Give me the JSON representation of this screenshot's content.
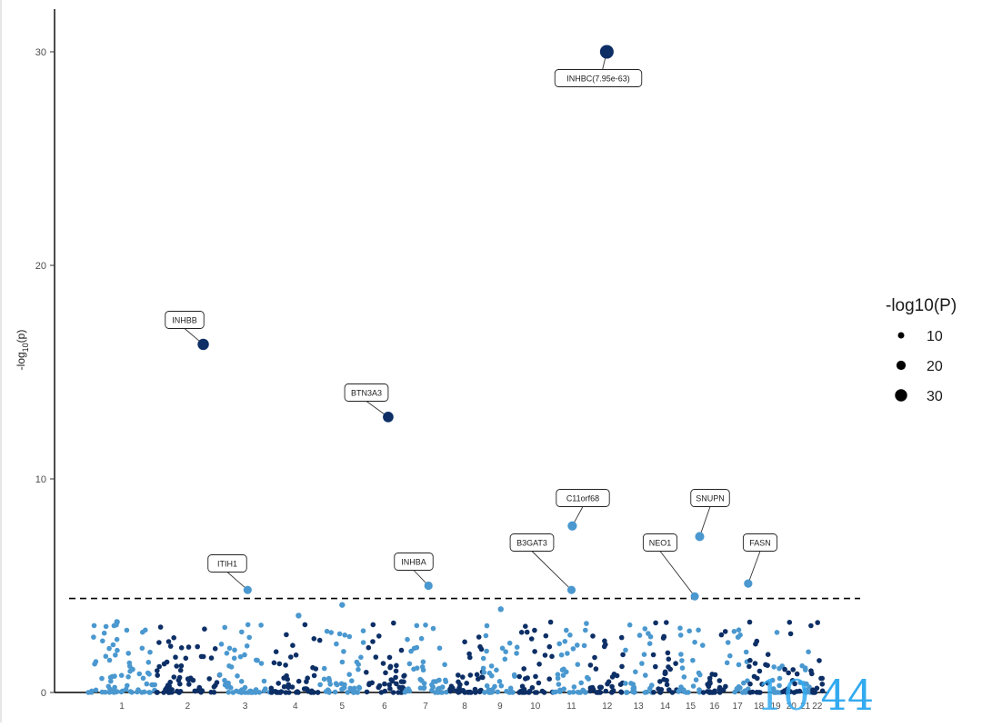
{
  "chart_data": {
    "type": "scatter",
    "subtype": "manhattan",
    "title": "",
    "xlabel": "",
    "ylabel": "-log10(p)",
    "ylim": [
      0,
      31.5
    ],
    "yticks": [
      0,
      10,
      20,
      30
    ],
    "grid": false,
    "legend": {
      "title": "-log10(P)",
      "placement": "right",
      "entries": [
        {
          "label": "10",
          "size_value": 10
        },
        {
          "label": "20",
          "size_value": 20
        },
        {
          "label": "30",
          "size_value": 30
        }
      ]
    },
    "threshold": {
      "y": 4.4,
      "style": "dashed"
    },
    "colors": {
      "light": "#4a98cf",
      "dark": "#0d2f66",
      "highlight": "#0d3a78"
    },
    "chromosomes": [
      {
        "label": "1",
        "start": 0,
        "end": 82
      },
      {
        "label": "2",
        "start": 82,
        "end": 160
      },
      {
        "label": "3",
        "start": 160,
        "end": 222
      },
      {
        "label": "4",
        "start": 222,
        "end": 282
      },
      {
        "label": "5",
        "start": 282,
        "end": 336
      },
      {
        "label": "6",
        "start": 336,
        "end": 385
      },
      {
        "label": "7",
        "start": 385,
        "end": 436
      },
      {
        "label": "8",
        "start": 436,
        "end": 480
      },
      {
        "label": "9",
        "start": 480,
        "end": 522
      },
      {
        "label": "10",
        "start": 522,
        "end": 566
      },
      {
        "label": "11",
        "start": 566,
        "end": 610
      },
      {
        "label": "12",
        "start": 610,
        "end": 653
      },
      {
        "label": "13",
        "start": 653,
        "end": 686
      },
      {
        "label": "14",
        "start": 686,
        "end": 718
      },
      {
        "label": "15",
        "start": 718,
        "end": 748
      },
      {
        "label": "16",
        "start": 748,
        "end": 776
      },
      {
        "label": "17",
        "start": 776,
        "end": 804
      },
      {
        "label": "18",
        "start": 804,
        "end": 828
      },
      {
        "label": "19",
        "start": 828,
        "end": 845
      },
      {
        "label": "20",
        "start": 845,
        "end": 866
      },
      {
        "label": "21",
        "start": 866,
        "end": 879
      },
      {
        "label": "22",
        "start": 879,
        "end": 895
      }
    ],
    "labeled_points": [
      {
        "gene": "INHBC(7.95e-63)",
        "chrom": "12",
        "x": 631,
        "y": 30.0,
        "size": 30,
        "color": "dark"
      },
      {
        "gene": "INHBB",
        "chrom": "2",
        "x": 140,
        "y": 16.3,
        "size": 16.3,
        "color": "dark"
      },
      {
        "gene": "BTN3A3",
        "chrom": "6",
        "x": 365,
        "y": 12.9,
        "size": 12.9,
        "color": "dark"
      },
      {
        "gene": "C11orf68",
        "chrom": "11",
        "x": 589,
        "y": 7.8,
        "size": 7.8,
        "color": "light"
      },
      {
        "gene": "SNUPN",
        "chrom": "15",
        "x": 744,
        "y": 7.3,
        "size": 7.3,
        "color": "light"
      },
      {
        "gene": "FASN",
        "chrom": "17",
        "x": 803,
        "y": 5.1,
        "size": 5.1,
        "color": "light"
      },
      {
        "gene": "INHBA",
        "chrom": "7",
        "x": 414,
        "y": 5.0,
        "size": 5.0,
        "color": "light"
      },
      {
        "gene": "ITIH1",
        "chrom": "3",
        "x": 194,
        "y": 4.8,
        "size": 4.8,
        "color": "light"
      },
      {
        "gene": "B3GAT3",
        "chrom": "11",
        "x": 588,
        "y": 4.8,
        "size": 4.8,
        "color": "light"
      },
      {
        "gene": "NEO1",
        "chrom": "15",
        "x": 738,
        "y": 4.5,
        "size": 4.5,
        "color": "light"
      }
    ],
    "notable_points": [
      {
        "x": 309,
        "y": 4.1
      },
      {
        "x": 502,
        "y": 3.9
      },
      {
        "x": 256,
        "y": 3.6
      },
      {
        "x": 35,
        "y": 3.3
      }
    ]
  },
  "watermark": {
    "part_a": "10",
    "part_b": "44"
  }
}
